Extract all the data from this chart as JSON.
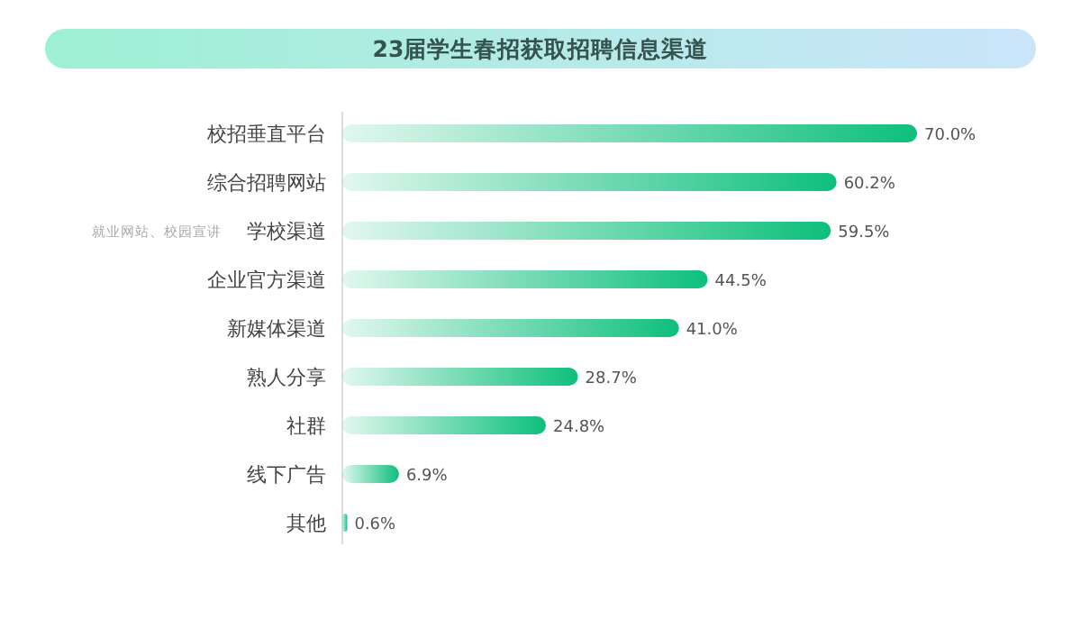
{
  "chart_data": {
    "type": "bar",
    "orientation": "horizontal",
    "title": "23届学生春招获取招聘信息渠道",
    "categories": [
      "校招垂直平台",
      "综合招聘网站",
      "学校渠道",
      "企业官方渠道",
      "新媒体渠道",
      "熟人分享",
      "社群",
      "线下广告",
      "其他"
    ],
    "values": [
      70.0,
      60.2,
      59.5,
      44.5,
      41.0,
      28.7,
      24.8,
      6.9,
      0.6
    ],
    "value_labels": [
      "70.0%",
      "60.2%",
      "59.5%",
      "44.5%",
      "41.0%",
      "28.7%",
      "24.8%",
      "6.9%",
      "0.6%"
    ],
    "color": "#0dbf7c",
    "annotations": [
      "就业网站、校园宣讲"
    ]
  }
}
